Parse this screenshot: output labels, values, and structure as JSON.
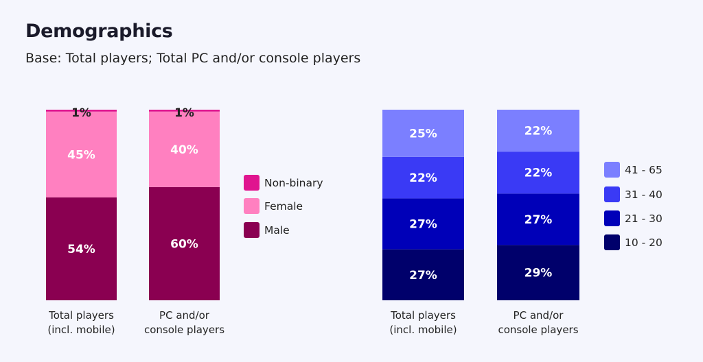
{
  "header": {
    "title": "Demographics",
    "subtitle": "Base: Total players; Total PC and/or console players"
  },
  "chart_data": [
    {
      "type": "bar",
      "stacked": true,
      "categories": [
        [
          "Total players",
          "(incl. mobile)"
        ],
        [
          "PC and/or",
          "console players"
        ]
      ],
      "series": [
        {
          "name": "Male",
          "values": [
            54,
            60
          ],
          "color": "#8a0051"
        },
        {
          "name": "Female",
          "values": [
            45,
            40
          ],
          "color": "#ff80c0"
        },
        {
          "name": "Non-binary",
          "values": [
            1,
            1
          ],
          "color": "#e0158f"
        }
      ],
      "legend_order": [
        "Non-binary",
        "Female",
        "Male"
      ],
      "legend_placement": "right",
      "grid": false,
      "ylim": [
        0,
        100
      ]
    },
    {
      "type": "bar",
      "stacked": true,
      "categories": [
        [
          "Total players",
          "(incl. mobile)"
        ],
        [
          "PC and/or",
          "console players"
        ]
      ],
      "series": [
        {
          "name": "10 - 20",
          "values": [
            27,
            29
          ],
          "color": "#00006b"
        },
        {
          "name": "21 - 30",
          "values": [
            27,
            27
          ],
          "color": "#0000b8"
        },
        {
          "name": "31 - 40",
          "values": [
            22,
            22
          ],
          "color": "#3a3af5"
        },
        {
          "name": "41 - 65",
          "values": [
            25,
            22
          ],
          "color": "#7b7fff"
        }
      ],
      "legend_order": [
        "41 - 65",
        "31 - 40",
        "21 - 30",
        "10 - 20"
      ],
      "legend_placement": "right",
      "grid": false,
      "ylim": [
        0,
        100
      ]
    }
  ]
}
